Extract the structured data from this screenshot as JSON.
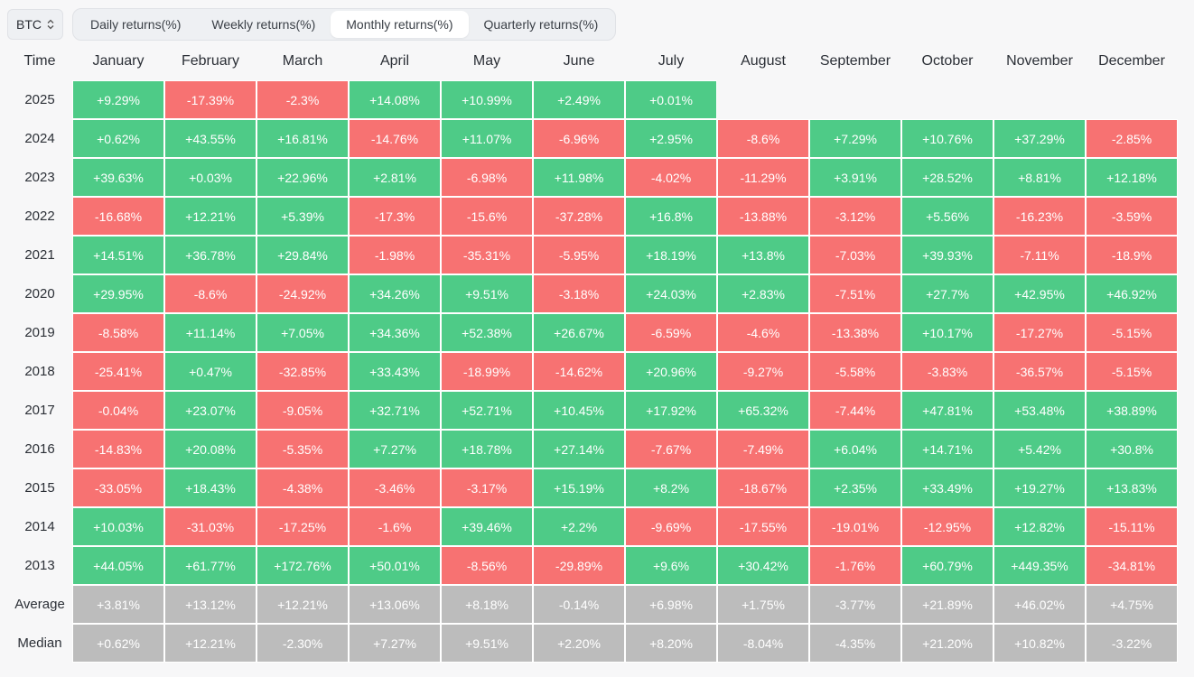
{
  "asset_selector": {
    "value": "BTC",
    "icon": "chevron-updown-icon"
  },
  "tabs": [
    {
      "label": "Daily returns(%)",
      "active": false
    },
    {
      "label": "Weekly returns(%)",
      "active": false
    },
    {
      "label": "Monthly returns(%)",
      "active": true
    },
    {
      "label": "Quarterly returns(%)",
      "active": false
    }
  ],
  "colors": {
    "positive": "#4ecb87",
    "negative": "#f77272",
    "summary": "#bcbcbc"
  },
  "table": {
    "corner_label": "Time",
    "months": [
      "January",
      "February",
      "March",
      "April",
      "May",
      "June",
      "July",
      "August",
      "September",
      "October",
      "November",
      "December"
    ],
    "rows": [
      {
        "label": "2025",
        "values": [
          "+9.29%",
          "-17.39%",
          "-2.3%",
          "+14.08%",
          "+10.99%",
          "+2.49%",
          "+0.01%",
          "",
          "",
          "",
          "",
          ""
        ]
      },
      {
        "label": "2024",
        "values": [
          "+0.62%",
          "+43.55%",
          "+16.81%",
          "-14.76%",
          "+11.07%",
          "-6.96%",
          "+2.95%",
          "-8.6%",
          "+7.29%",
          "+10.76%",
          "+37.29%",
          "-2.85%"
        ]
      },
      {
        "label": "2023",
        "values": [
          "+39.63%",
          "+0.03%",
          "+22.96%",
          "+2.81%",
          "-6.98%",
          "+11.98%",
          "-4.02%",
          "-11.29%",
          "+3.91%",
          "+28.52%",
          "+8.81%",
          "+12.18%"
        ]
      },
      {
        "label": "2022",
        "values": [
          "-16.68%",
          "+12.21%",
          "+5.39%",
          "-17.3%",
          "-15.6%",
          "-37.28%",
          "+16.8%",
          "-13.88%",
          "-3.12%",
          "+5.56%",
          "-16.23%",
          "-3.59%"
        ]
      },
      {
        "label": "2021",
        "values": [
          "+14.51%",
          "+36.78%",
          "+29.84%",
          "-1.98%",
          "-35.31%",
          "-5.95%",
          "+18.19%",
          "+13.8%",
          "-7.03%",
          "+39.93%",
          "-7.11%",
          "-18.9%"
        ]
      },
      {
        "label": "2020",
        "values": [
          "+29.95%",
          "-8.6%",
          "-24.92%",
          "+34.26%",
          "+9.51%",
          "-3.18%",
          "+24.03%",
          "+2.83%",
          "-7.51%",
          "+27.7%",
          "+42.95%",
          "+46.92%"
        ]
      },
      {
        "label": "2019",
        "values": [
          "-8.58%",
          "+11.14%",
          "+7.05%",
          "+34.36%",
          "+52.38%",
          "+26.67%",
          "-6.59%",
          "-4.6%",
          "-13.38%",
          "+10.17%",
          "-17.27%",
          "-5.15%"
        ]
      },
      {
        "label": "2018",
        "values": [
          "-25.41%",
          "+0.47%",
          "-32.85%",
          "+33.43%",
          "-18.99%",
          "-14.62%",
          "+20.96%",
          "-9.27%",
          "-5.58%",
          "-3.83%",
          "-36.57%",
          "-5.15%"
        ]
      },
      {
        "label": "2017",
        "values": [
          "-0.04%",
          "+23.07%",
          "-9.05%",
          "+32.71%",
          "+52.71%",
          "+10.45%",
          "+17.92%",
          "+65.32%",
          "-7.44%",
          "+47.81%",
          "+53.48%",
          "+38.89%"
        ]
      },
      {
        "label": "2016",
        "values": [
          "-14.83%",
          "+20.08%",
          "-5.35%",
          "+7.27%",
          "+18.78%",
          "+27.14%",
          "-7.67%",
          "-7.49%",
          "+6.04%",
          "+14.71%",
          "+5.42%",
          "+30.8%"
        ]
      },
      {
        "label": "2015",
        "values": [
          "-33.05%",
          "+18.43%",
          "-4.38%",
          "-3.46%",
          "-3.17%",
          "+15.19%",
          "+8.2%",
          "-18.67%",
          "+2.35%",
          "+33.49%",
          "+19.27%",
          "+13.83%"
        ]
      },
      {
        "label": "2014",
        "values": [
          "+10.03%",
          "-31.03%",
          "-17.25%",
          "-1.6%",
          "+39.46%",
          "+2.2%",
          "-9.69%",
          "-17.55%",
          "-19.01%",
          "-12.95%",
          "+12.82%",
          "-15.11%"
        ]
      },
      {
        "label": "2013",
        "values": [
          "+44.05%",
          "+61.77%",
          "+172.76%",
          "+50.01%",
          "-8.56%",
          "-29.89%",
          "+9.6%",
          "+30.42%",
          "-1.76%",
          "+60.79%",
          "+449.35%",
          "-34.81%"
        ]
      }
    ],
    "summary_rows": [
      {
        "label": "Average",
        "values": [
          "+3.81%",
          "+13.12%",
          "+12.21%",
          "+13.06%",
          "+8.18%",
          "-0.14%",
          "+6.98%",
          "+1.75%",
          "-3.77%",
          "+21.89%",
          "+46.02%",
          "+4.75%"
        ]
      },
      {
        "label": "Median",
        "values": [
          "+0.62%",
          "+12.21%",
          "-2.30%",
          "+7.27%",
          "+9.51%",
          "+2.20%",
          "+8.20%",
          "-8.04%",
          "-4.35%",
          "+21.20%",
          "+10.82%",
          "-3.22%"
        ]
      }
    ]
  }
}
